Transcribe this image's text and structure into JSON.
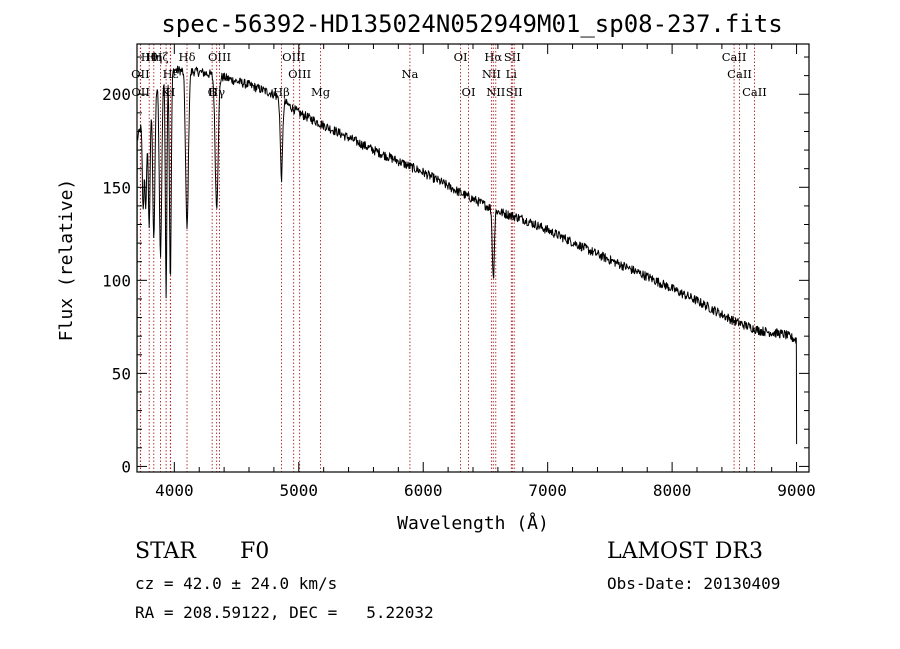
{
  "chart_data": {
    "type": "line",
    "title": "spec-56392-HD135024N052949M01_sp08-237.fits",
    "xlabel": "Wavelength (Å)",
    "ylabel": "Flux (relative)",
    "xlim": [
      3700,
      9100
    ],
    "ylim": [
      -3,
      227
    ],
    "x_ticks": [
      4000,
      5000,
      6000,
      7000,
      8000,
      9000
    ],
    "y_ticks": [
      0,
      50,
      100,
      150,
      200
    ],
    "continuum": {
      "x": [
        3700,
        3800,
        3900,
        4000,
        4200,
        4400,
        4600,
        4800,
        5000,
        5300,
        5600,
        6000,
        6300,
        6600,
        6800,
        7000,
        7400,
        7800,
        8200,
        8500,
        8700,
        8900,
        9000
      ],
      "y": [
        175,
        200,
        210,
        213,
        212,
        209,
        205,
        200,
        190,
        180,
        170,
        158,
        147,
        137,
        133,
        127,
        114,
        102,
        89,
        78,
        73,
        71,
        68
      ]
    },
    "absorption_features": [
      {
        "center": 3750,
        "depth": 50,
        "width": 7
      },
      {
        "center": 3771,
        "depth": 55,
        "width": 7
      },
      {
        "center": 3798,
        "depth": 70,
        "width": 8
      },
      {
        "center": 3835,
        "depth": 80,
        "width": 9
      },
      {
        "center": 3889,
        "depth": 95,
        "width": 10
      },
      {
        "center": 3934,
        "depth": 120,
        "width": 6
      },
      {
        "center": 3968,
        "depth": 112,
        "width": 7
      },
      {
        "center": 4102,
        "depth": 85,
        "width": 11
      },
      {
        "center": 4340,
        "depth": 70,
        "width": 12
      },
      {
        "center": 4861,
        "depth": 42,
        "width": 9
      },
      {
        "center": 6563,
        "depth": 37,
        "width": 8
      }
    ],
    "spectral_lines": [
      {
        "name": "Hθ",
        "wavelength": 3798,
        "row": 1
      },
      {
        "name": "Hη",
        "wavelength": 3835,
        "row": 1
      },
      {
        "name": "Hζ",
        "wavelength": 3889,
        "row": 1
      },
      {
        "name": "Hδ",
        "wavelength": 4102,
        "row": 1
      },
      {
        "name": "OIII",
        "wavelength": 4363,
        "row": 1
      },
      {
        "name": "OIII",
        "wavelength": 4959,
        "row": 1
      },
      {
        "name": "OI",
        "wavelength": 6300,
        "row": 1
      },
      {
        "name": "Hα",
        "wavelength": 6563,
        "row": 1
      },
      {
        "name": "SII",
        "wavelength": 6716,
        "row": 1
      },
      {
        "name": "CaII",
        "wavelength": 8498,
        "row": 1
      },
      {
        "name": "OII",
        "wavelength": 3727,
        "row": 2
      },
      {
        "name": "Hε",
        "wavelength": 3970,
        "row": 2
      },
      {
        "name": "OIII",
        "wavelength": 5007,
        "row": 2
      },
      {
        "name": "Na",
        "wavelength": 5893,
        "row": 2
      },
      {
        "name": "NII",
        "wavelength": 6548,
        "row": 2
      },
      {
        "name": "Li",
        "wavelength": 6708,
        "row": 2
      },
      {
        "name": "CaII",
        "wavelength": 8542,
        "row": 2
      },
      {
        "name": "OII",
        "wavelength": 3729,
        "row": 3
      },
      {
        "name": "K",
        "wavelength": 3934,
        "row": 3
      },
      {
        "name": "H",
        "wavelength": 3968,
        "row": 3
      },
      {
        "name": "G",
        "wavelength": 4304,
        "row": 3
      },
      {
        "name": "Hγ",
        "wavelength": 4340,
        "row": 3
      },
      {
        "name": "Hβ",
        "wavelength": 4861,
        "row": 3
      },
      {
        "name": "Mg",
        "wavelength": 5175,
        "row": 3
      },
      {
        "name": "OI",
        "wavelength": 6364,
        "row": 3
      },
      {
        "name": "NII",
        "wavelength": 6583,
        "row": 3
      },
      {
        "name": "SII",
        "wavelength": 6731,
        "row": 3
      },
      {
        "name": "CaII",
        "wavelength": 8662,
        "row": 3
      }
    ]
  },
  "info": {
    "class_label": "STAR",
    "subclass": "F0",
    "survey": "LAMOST DR3",
    "cz_text": "cz = 42.0 ± 24.0 km/s",
    "obs_date_text": "Obs-Date: 20130409",
    "radec_text": "RA = 208.59122, DEC =   5.22032"
  }
}
